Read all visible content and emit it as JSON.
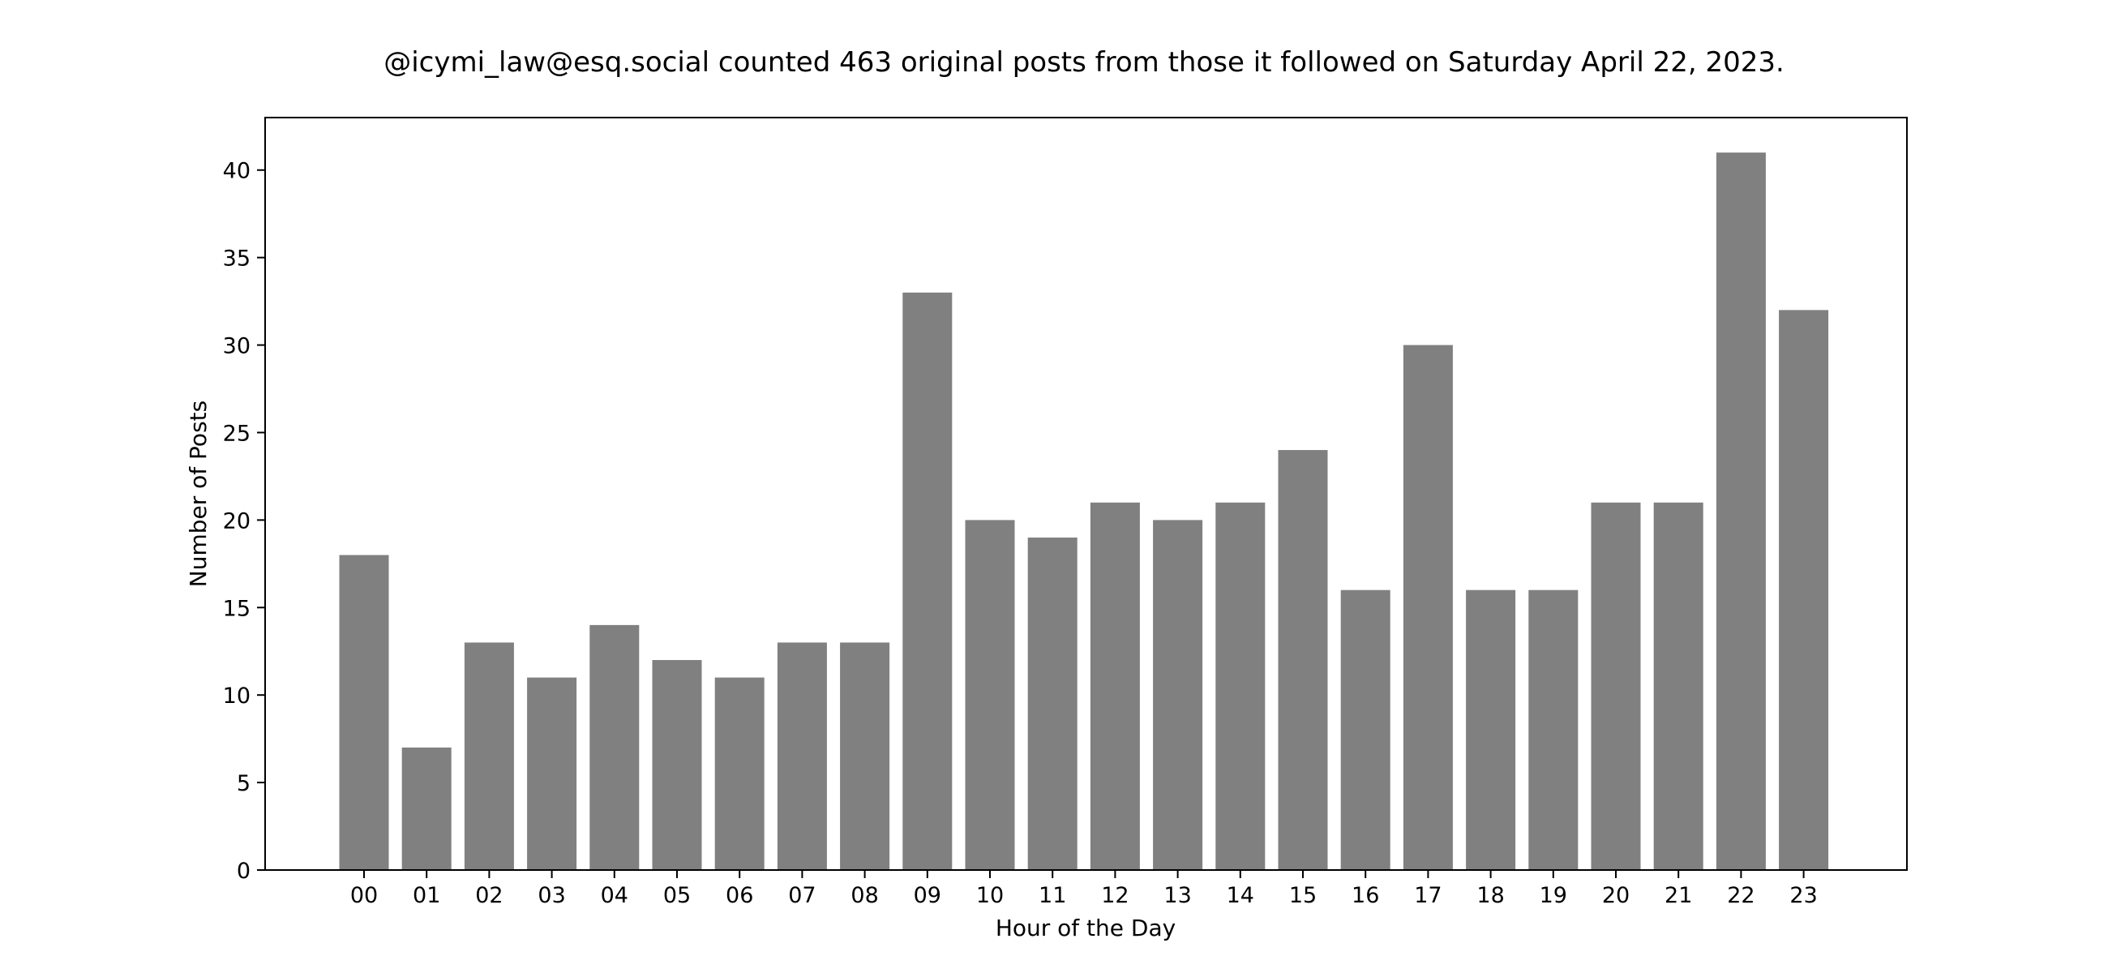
{
  "chart_data": {
    "type": "bar",
    "title": "@icymi_law@esq.social counted 463 original posts from those it followed on Saturday April 22, 2023.",
    "xlabel": "Hour of the Day",
    "ylabel": "Number of Posts",
    "categories": [
      "00",
      "01",
      "02",
      "03",
      "04",
      "05",
      "06",
      "07",
      "08",
      "09",
      "10",
      "11",
      "12",
      "13",
      "14",
      "15",
      "16",
      "17",
      "18",
      "19",
      "20",
      "21",
      "22",
      "23"
    ],
    "values": [
      18,
      7,
      13,
      11,
      14,
      12,
      11,
      13,
      13,
      33,
      20,
      19,
      21,
      20,
      21,
      24,
      16,
      30,
      16,
      16,
      21,
      21,
      41,
      32
    ],
    "ylim": [
      0,
      43
    ],
    "yticks": [
      0,
      5,
      10,
      15,
      20,
      25,
      30,
      35,
      40
    ],
    "grid": false,
    "bar_color": "#808080"
  }
}
